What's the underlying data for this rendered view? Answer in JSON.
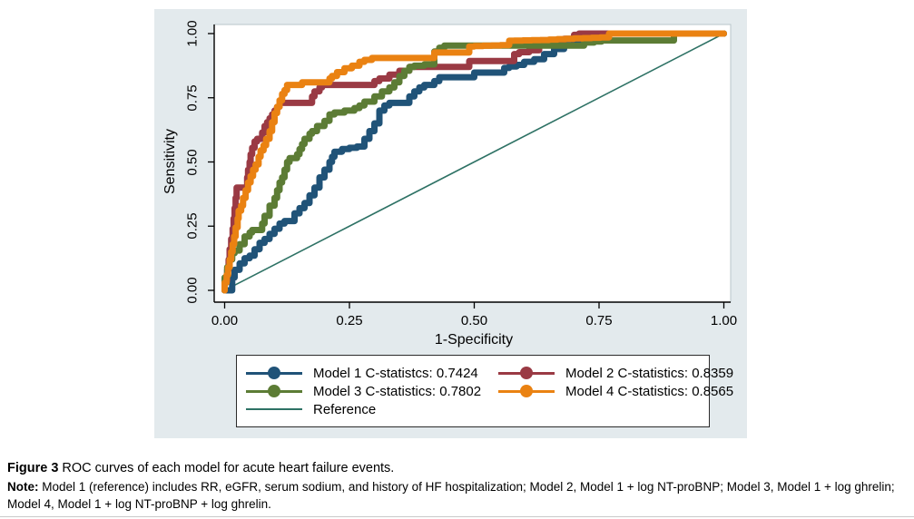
{
  "figure": {
    "background": "#e3eaed",
    "plot_background": "#ffffff"
  },
  "caption": {
    "figure_label": "Figure 3",
    "figure_text": " ROC curves of each model for acute heart failure events.",
    "note_label": "Note:",
    "note_text": " Model 1 (reference) includes RR, eGFR, serum sodium, and history of HF hospitalization; Model 2, Model 1 + log NT-proBNP; Model 3, Model 1 + log ghrelin; Model 4, Model 1 + log NT-proBNP + log ghrelin."
  },
  "chart_data": {
    "type": "line",
    "subtype": "roc-step-curves",
    "title": "",
    "xlabel": "1-Specificity",
    "ylabel": "Sensitivity",
    "xlim": [
      0,
      1
    ],
    "ylim": [
      0,
      1
    ],
    "grid": false,
    "legend_position": "bottom",
    "x_ticks": [
      {
        "v": 0,
        "label": "0.00"
      },
      {
        "v": 0.25,
        "label": "0.25"
      },
      {
        "v": 0.5,
        "label": "0.50"
      },
      {
        "v": 0.75,
        "label": "0.75"
      },
      {
        "v": 1,
        "label": "1.00"
      }
    ],
    "y_ticks": [
      {
        "v": 0,
        "label": "0.00"
      },
      {
        "v": 0.25,
        "label": "0.25"
      },
      {
        "v": 0.5,
        "label": "0.50"
      },
      {
        "v": 0.75,
        "label": "0.75"
      },
      {
        "v": 1,
        "label": "1.00"
      }
    ],
    "series": [
      {
        "name": "Model 1 C-statistcs: 0.7424",
        "c_statistic": 0.7424,
        "color": "#205378",
        "marker": "circle",
        "points": [
          [
            0,
            0
          ],
          [
            0.015,
            0
          ],
          [
            0.02,
            0.05
          ],
          [
            0.03,
            0.08
          ],
          [
            0.04,
            0.105
          ],
          [
            0.05,
            0.125
          ],
          [
            0.06,
            0.135
          ],
          [
            0.07,
            0.16
          ],
          [
            0.08,
            0.185
          ],
          [
            0.09,
            0.2
          ],
          [
            0.1,
            0.22
          ],
          [
            0.11,
            0.24
          ],
          [
            0.12,
            0.26
          ],
          [
            0.14,
            0.27
          ],
          [
            0.15,
            0.3
          ],
          [
            0.16,
            0.32
          ],
          [
            0.17,
            0.34
          ],
          [
            0.18,
            0.37
          ],
          [
            0.19,
            0.4
          ],
          [
            0.2,
            0.44
          ],
          [
            0.21,
            0.47
          ],
          [
            0.215,
            0.5
          ],
          [
            0.22,
            0.52
          ],
          [
            0.235,
            0.54
          ],
          [
            0.25,
            0.55
          ],
          [
            0.28,
            0.56
          ],
          [
            0.29,
            0.59
          ],
          [
            0.3,
            0.62
          ],
          [
            0.31,
            0.65
          ],
          [
            0.32,
            0.7
          ],
          [
            0.33,
            0.72
          ],
          [
            0.345,
            0.73
          ],
          [
            0.37,
            0.73
          ],
          [
            0.38,
            0.755
          ],
          [
            0.39,
            0.775
          ],
          [
            0.4,
            0.79
          ],
          [
            0.42,
            0.8
          ],
          [
            0.43,
            0.815
          ],
          [
            0.45,
            0.83
          ],
          [
            0.5,
            0.83
          ],
          [
            0.52,
            0.848
          ],
          [
            0.56,
            0.848
          ],
          [
            0.57,
            0.866
          ],
          [
            0.6,
            0.878
          ],
          [
            0.62,
            0.89
          ],
          [
            0.64,
            0.9
          ],
          [
            0.66,
            0.92
          ],
          [
            0.68,
            0.94
          ],
          [
            0.7,
            0.955
          ],
          [
            0.715,
            0.97
          ],
          [
            0.73,
            0.985
          ],
          [
            0.74,
            1
          ],
          [
            1,
            1
          ]
        ]
      },
      {
        "name": "Model 2 C-statistics: 0.8359",
        "c_statistic": 0.8359,
        "color": "#9a3a44",
        "marker": "circle",
        "points": [
          [
            0,
            0
          ],
          [
            0.005,
            0.04
          ],
          [
            0.008,
            0.08
          ],
          [
            0.01,
            0.12
          ],
          [
            0.013,
            0.16
          ],
          [
            0.016,
            0.2
          ],
          [
            0.018,
            0.24
          ],
          [
            0.02,
            0.28
          ],
          [
            0.022,
            0.32
          ],
          [
            0.024,
            0.36
          ],
          [
            0.026,
            0.4
          ],
          [
            0.045,
            0.4
          ],
          [
            0.047,
            0.44
          ],
          [
            0.05,
            0.47
          ],
          [
            0.052,
            0.5
          ],
          [
            0.055,
            0.53
          ],
          [
            0.06,
            0.555
          ],
          [
            0.065,
            0.58
          ],
          [
            0.075,
            0.59
          ],
          [
            0.08,
            0.615
          ],
          [
            0.085,
            0.64
          ],
          [
            0.09,
            0.655
          ],
          [
            0.095,
            0.67
          ],
          [
            0.1,
            0.685
          ],
          [
            0.105,
            0.7
          ],
          [
            0.11,
            0.715
          ],
          [
            0.115,
            0.73
          ],
          [
            0.175,
            0.73
          ],
          [
            0.18,
            0.755
          ],
          [
            0.19,
            0.775
          ],
          [
            0.195,
            0.79
          ],
          [
            0.2,
            0.8
          ],
          [
            0.3,
            0.8
          ],
          [
            0.31,
            0.815
          ],
          [
            0.33,
            0.825
          ],
          [
            0.35,
            0.84
          ],
          [
            0.37,
            0.855
          ],
          [
            0.375,
            0.87
          ],
          [
            0.49,
            0.87
          ],
          [
            0.5,
            0.893
          ],
          [
            0.58,
            0.893
          ],
          [
            0.59,
            0.92
          ],
          [
            0.63,
            0.935
          ],
          [
            0.65,
            0.955
          ],
          [
            0.66,
            0.97
          ],
          [
            0.7,
            0.98
          ],
          [
            0.71,
            0.995
          ],
          [
            0.73,
            1
          ],
          [
            1,
            1
          ]
        ]
      },
      {
        "name": "Model 3 C-statistics: 0.7802",
        "c_statistic": 0.7802,
        "color": "#5c7c35",
        "marker": "circle",
        "points": [
          [
            0,
            0
          ],
          [
            0.005,
            0.05
          ],
          [
            0.01,
            0.09
          ],
          [
            0.015,
            0.12
          ],
          [
            0.02,
            0.145
          ],
          [
            0.03,
            0.155
          ],
          [
            0.04,
            0.18
          ],
          [
            0.05,
            0.21
          ],
          [
            0.055,
            0.225
          ],
          [
            0.075,
            0.235
          ],
          [
            0.08,
            0.26
          ],
          [
            0.09,
            0.29
          ],
          [
            0.1,
            0.33
          ],
          [
            0.105,
            0.36
          ],
          [
            0.11,
            0.39
          ],
          [
            0.115,
            0.42
          ],
          [
            0.12,
            0.44
          ],
          [
            0.125,
            0.47
          ],
          [
            0.13,
            0.5
          ],
          [
            0.145,
            0.515
          ],
          [
            0.15,
            0.53
          ],
          [
            0.155,
            0.55
          ],
          [
            0.16,
            0.57
          ],
          [
            0.17,
            0.59
          ],
          [
            0.175,
            0.61
          ],
          [
            0.185,
            0.62
          ],
          [
            0.2,
            0.64
          ],
          [
            0.21,
            0.66
          ],
          [
            0.22,
            0.685
          ],
          [
            0.26,
            0.7
          ],
          [
            0.27,
            0.71
          ],
          [
            0.28,
            0.72
          ],
          [
            0.3,
            0.735
          ],
          [
            0.315,
            0.755
          ],
          [
            0.33,
            0.775
          ],
          [
            0.34,
            0.79
          ],
          [
            0.35,
            0.81
          ],
          [
            0.36,
            0.835
          ],
          [
            0.37,
            0.855
          ],
          [
            0.38,
            0.87
          ],
          [
            0.42,
            0.88
          ],
          [
            0.43,
            0.93
          ],
          [
            0.44,
            0.945
          ],
          [
            0.46,
            0.953
          ],
          [
            0.72,
            0.953
          ],
          [
            0.74,
            0.965
          ],
          [
            0.77,
            0.973
          ],
          [
            0.9,
            0.973
          ],
          [
            0.92,
            1
          ],
          [
            1,
            1
          ]
        ]
      },
      {
        "name": "Model 4 C-statistics: 0.8565",
        "c_statistic": 0.8565,
        "color": "#ea8212",
        "marker": "circle",
        "points": [
          [
            0,
            0
          ],
          [
            0.004,
            0.03
          ],
          [
            0.007,
            0.06
          ],
          [
            0.01,
            0.09
          ],
          [
            0.013,
            0.12
          ],
          [
            0.016,
            0.15
          ],
          [
            0.019,
            0.18
          ],
          [
            0.022,
            0.21
          ],
          [
            0.026,
            0.245
          ],
          [
            0.028,
            0.28
          ],
          [
            0.033,
            0.31
          ],
          [
            0.037,
            0.33
          ],
          [
            0.042,
            0.36
          ],
          [
            0.047,
            0.39
          ],
          [
            0.052,
            0.42
          ],
          [
            0.057,
            0.445
          ],
          [
            0.062,
            0.47
          ],
          [
            0.068,
            0.49
          ],
          [
            0.072,
            0.52
          ],
          [
            0.078,
            0.545
          ],
          [
            0.083,
            0.565
          ],
          [
            0.09,
            0.59
          ],
          [
            0.095,
            0.62
          ],
          [
            0.1,
            0.655
          ],
          [
            0.105,
            0.69
          ],
          [
            0.11,
            0.715
          ],
          [
            0.115,
            0.74
          ],
          [
            0.12,
            0.765
          ],
          [
            0.125,
            0.78
          ],
          [
            0.13,
            0.8
          ],
          [
            0.155,
            0.8
          ],
          [
            0.17,
            0.81
          ],
          [
            0.21,
            0.81
          ],
          [
            0.215,
            0.825
          ],
          [
            0.225,
            0.835
          ],
          [
            0.24,
            0.85
          ],
          [
            0.255,
            0.865
          ],
          [
            0.27,
            0.875
          ],
          [
            0.28,
            0.89
          ],
          [
            0.31,
            0.905
          ],
          [
            0.42,
            0.905
          ],
          [
            0.43,
            0.926
          ],
          [
            0.49,
            0.926
          ],
          [
            0.5,
            0.95
          ],
          [
            0.57,
            0.955
          ],
          [
            0.58,
            0.972
          ],
          [
            0.65,
            0.975
          ],
          [
            0.7,
            0.98
          ],
          [
            0.77,
            0.985
          ],
          [
            0.79,
            1
          ],
          [
            1,
            1
          ]
        ]
      },
      {
        "name": "Reference",
        "color": "#2e7265",
        "marker": "none",
        "style": "thin",
        "points": [
          [
            0,
            0
          ],
          [
            1,
            1
          ]
        ]
      }
    ]
  }
}
